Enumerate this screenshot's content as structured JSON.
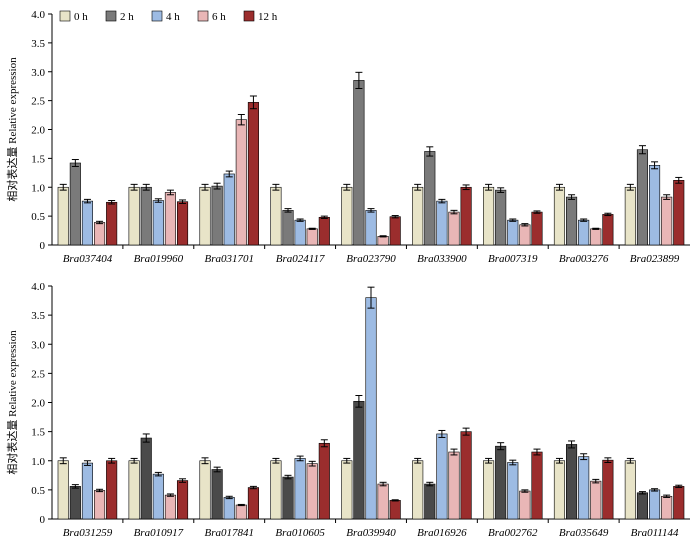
{
  "chart_data": [
    {
      "type": "bar",
      "ylabel": "相对表达量 Relative expression",
      "ylim": [
        0,
        4.0
      ],
      "yticks": [
        "0",
        "0.5",
        "1.0",
        "1.5",
        "2.0",
        "2.5",
        "3.0",
        "3.5",
        "4.0"
      ],
      "legend_position": "top-left",
      "categories": [
        "Bra037404",
        "Bra019960",
        "Bra031701",
        "Bra024117",
        "Bra023790",
        "Bra033900",
        "Bra007319",
        "Bra003276",
        "Bra023899"
      ],
      "series": [
        {
          "name": "0 h",
          "color": "#e8e4c8",
          "values": [
            1.0,
            1.0,
            1.0,
            1.0,
            1.0,
            1.0,
            1.0,
            1.0,
            1.0
          ],
          "errors": [
            0.05,
            0.05,
            0.05,
            0.05,
            0.05,
            0.05,
            0.05,
            0.05,
            0.05
          ]
        },
        {
          "name": "2 h",
          "color": "#7a7a7a",
          "values": [
            1.42,
            1.0,
            1.02,
            0.6,
            2.85,
            1.62,
            0.95,
            0.83,
            1.65
          ],
          "errors": [
            0.06,
            0.05,
            0.05,
            0.03,
            0.14,
            0.08,
            0.04,
            0.04,
            0.07
          ]
        },
        {
          "name": "4 h",
          "color": "#9dbbe3",
          "values": [
            0.76,
            0.77,
            1.23,
            0.43,
            0.6,
            0.76,
            0.43,
            0.43,
            1.38
          ],
          "errors": [
            0.03,
            0.03,
            0.05,
            0.02,
            0.03,
            0.03,
            0.02,
            0.02,
            0.06
          ]
        },
        {
          "name": "6 h",
          "color": "#e9b6b6",
          "values": [
            0.39,
            0.91,
            2.17,
            0.28,
            0.15,
            0.57,
            0.35,
            0.28,
            0.83
          ],
          "errors": [
            0.02,
            0.04,
            0.09,
            0.01,
            0.01,
            0.03,
            0.02,
            0.01,
            0.04
          ]
        },
        {
          "name": "12 h",
          "color": "#9b2d2d",
          "values": [
            0.74,
            0.75,
            2.47,
            0.48,
            0.49,
            1.0,
            0.57,
            0.53,
            1.12
          ],
          "errors": [
            0.03,
            0.03,
            0.11,
            0.02,
            0.02,
            0.04,
            0.02,
            0.02,
            0.05
          ]
        }
      ]
    },
    {
      "type": "bar",
      "ylabel": "相对表达量 Relative expression",
      "ylim": [
        0,
        4.0
      ],
      "yticks": [
        "0",
        "0.5",
        "1.0",
        "1.5",
        "2.0",
        "2.5",
        "3.0",
        "3.5",
        "4.0"
      ],
      "legend_position": "none",
      "categories": [
        "Bra031259",
        "Bra010917",
        "Bra017841",
        "Bra010605",
        "Bra039940",
        "Bra016926",
        "Bra002762",
        "Bra035649",
        "Bra011144"
      ],
      "series": [
        {
          "name": "0 h",
          "color": "#e8e4c8",
          "values": [
            1.0,
            1.0,
            1.0,
            1.0,
            1.0,
            1.0,
            1.0,
            1.0,
            1.0
          ],
          "errors": [
            0.05,
            0.04,
            0.05,
            0.04,
            0.04,
            0.04,
            0.04,
            0.04,
            0.04
          ]
        },
        {
          "name": "2 h",
          "color": "#4a4a4a",
          "values": [
            0.56,
            1.39,
            0.85,
            0.72,
            2.02,
            0.6,
            1.25,
            1.28,
            0.45
          ],
          "errors": [
            0.03,
            0.07,
            0.04,
            0.03,
            0.1,
            0.03,
            0.06,
            0.06,
            0.02
          ]
        },
        {
          "name": "4 h",
          "color": "#9dbbe3",
          "values": [
            0.96,
            0.77,
            0.37,
            1.04,
            3.8,
            1.46,
            0.97,
            1.07,
            0.5
          ],
          "errors": [
            0.04,
            0.03,
            0.02,
            0.04,
            0.18,
            0.06,
            0.04,
            0.05,
            0.02
          ]
        },
        {
          "name": "6 h",
          "color": "#e9b6b6",
          "values": [
            0.49,
            0.41,
            0.24,
            0.95,
            0.6,
            1.15,
            0.48,
            0.65,
            0.39
          ],
          "errors": [
            0.02,
            0.02,
            0.01,
            0.04,
            0.03,
            0.05,
            0.02,
            0.03,
            0.02
          ]
        },
        {
          "name": "12 h",
          "color": "#9b2d2d",
          "values": [
            1.0,
            0.66,
            0.54,
            1.3,
            0.32,
            1.5,
            1.15,
            1.01,
            0.56
          ],
          "errors": [
            0.04,
            0.03,
            0.02,
            0.06,
            0.01,
            0.06,
            0.05,
            0.04,
            0.02
          ]
        }
      ]
    }
  ]
}
